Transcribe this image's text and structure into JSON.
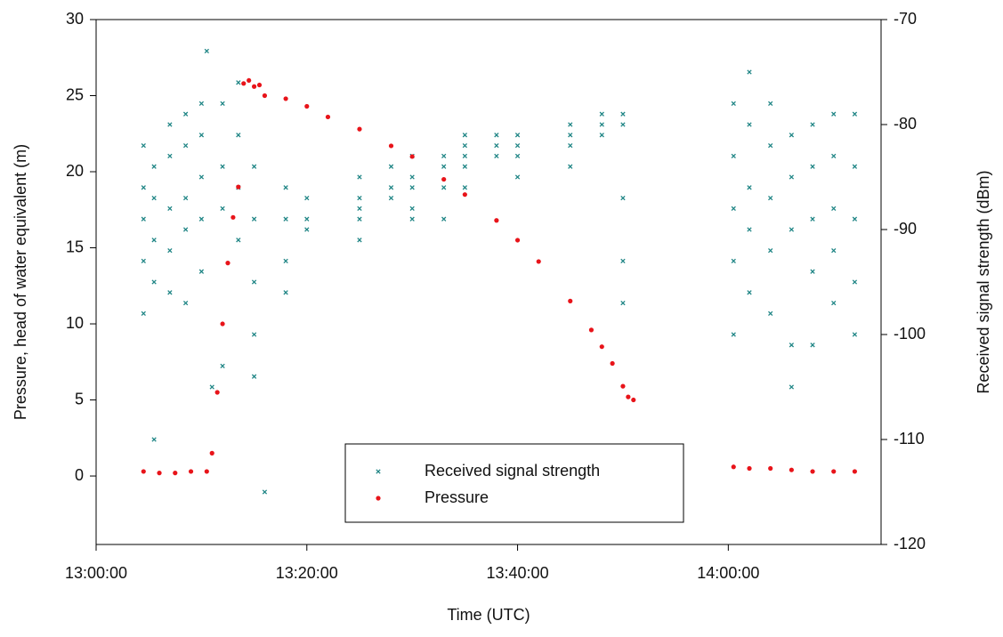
{
  "chart_data": {
    "type": "scatter",
    "xlabel": "Time (UTC)",
    "ylabel": "Pressure, head of water equivalent (m)",
    "y2label": "Received signal strength (dBm)",
    "xlim": [
      "13:00:00",
      "14:14:30"
    ],
    "xticks": [
      "13:00:00",
      "13:20:00",
      "13:40:00",
      "14:00:00"
    ],
    "ylim": [
      -4.5,
      30
    ],
    "yticks": [
      0,
      5,
      10,
      15,
      20,
      25,
      30
    ],
    "y2lim": [
      -120,
      -70
    ],
    "y2ticks": [
      -120,
      -110,
      -100,
      -90,
      -80,
      -70
    ],
    "legend": "bottom-center",
    "series": [
      {
        "name": "Received signal strength",
        "color": "#1f8585",
        "axis": "y2",
        "marker": "x",
        "x": [
          "13:04:30",
          "13:04:30",
          "13:04:30",
          "13:04:30",
          "13:04:30",
          "13:05:30",
          "13:05:30",
          "13:05:30",
          "13:05:30",
          "13:05:30",
          "13:07:00",
          "13:07:00",
          "13:07:00",
          "13:07:00",
          "13:07:00",
          "13:08:30",
          "13:08:30",
          "13:08:30",
          "13:08:30",
          "13:08:30",
          "13:10:00",
          "13:10:00",
          "13:10:00",
          "13:10:00",
          "13:10:00",
          "13:10:30",
          "13:11:00",
          "13:12:00",
          "13:12:00",
          "13:12:00",
          "13:12:00",
          "13:13:30",
          "13:13:30",
          "13:13:30",
          "13:13:30",
          "13:15:00",
          "13:15:00",
          "13:15:00",
          "13:15:00",
          "13:15:00",
          "13:16:00",
          "13:18:00",
          "13:18:00",
          "13:18:00",
          "13:18:00",
          "13:20:00",
          "13:20:00",
          "13:20:00",
          "13:25:00",
          "13:25:00",
          "13:25:00",
          "13:25:00",
          "13:25:00",
          "13:28:00",
          "13:28:00",
          "13:28:00",
          "13:30:00",
          "13:30:00",
          "13:30:00",
          "13:30:00",
          "13:30:00",
          "13:33:00",
          "13:33:00",
          "13:33:00",
          "13:33:00",
          "13:35:00",
          "13:35:00",
          "13:35:00",
          "13:35:00",
          "13:35:00",
          "13:38:00",
          "13:38:00",
          "13:38:00",
          "13:40:00",
          "13:40:00",
          "13:40:00",
          "13:40:00",
          "13:45:00",
          "13:45:00",
          "13:45:00",
          "13:45:00",
          "13:48:00",
          "13:48:00",
          "13:48:00",
          "13:50:00",
          "13:50:00",
          "13:50:00",
          "13:50:00",
          "13:50:00",
          "14:00:30",
          "14:00:30",
          "14:00:30",
          "14:00:30",
          "14:00:30",
          "14:02:00",
          "14:02:00",
          "14:02:00",
          "14:02:00",
          "14:02:00",
          "14:04:00",
          "14:04:00",
          "14:04:00",
          "14:04:00",
          "14:04:00",
          "14:06:00",
          "14:06:00",
          "14:06:00",
          "14:06:00",
          "14:06:00",
          "14:08:00",
          "14:08:00",
          "14:08:00",
          "14:08:00",
          "14:08:00",
          "14:10:00",
          "14:10:00",
          "14:10:00",
          "14:10:00",
          "14:10:00",
          "14:12:00",
          "14:12:00",
          "14:12:00",
          "14:12:00",
          "14:12:00"
        ],
        "values": [
          -82,
          -86,
          -89,
          -93,
          -98,
          -84,
          -87,
          -91,
          -95,
          -110,
          -80,
          -83,
          -88,
          -92,
          -96,
          -79,
          -82,
          -87,
          -90,
          -97,
          -78,
          -81,
          -85,
          -89,
          -94,
          -73,
          -105,
          -78,
          -84,
          -88,
          -103,
          -76,
          -81,
          -86,
          -91,
          -84,
          -89,
          -95,
          -100,
          -104,
          -115,
          -86,
          -89,
          -93,
          -96,
          -87,
          -89,
          -90,
          -85,
          -87,
          -88,
          -89,
          -91,
          -84,
          -86,
          -87,
          -83,
          -85,
          -86,
          -88,
          -89,
          -83,
          -84,
          -86,
          -89,
          -81,
          -82,
          -83,
          -84,
          -86,
          -81,
          -82,
          -83,
          -81,
          -82,
          -83,
          -85,
          -80,
          -81,
          -82,
          -84,
          -79,
          -80,
          -81,
          -79,
          -80,
          -87,
          -93,
          -97,
          -78,
          -83,
          -88,
          -93,
          -100,
          -75,
          -80,
          -86,
          -90,
          -96,
          -78,
          -82,
          -87,
          -92,
          -98,
          -81,
          -85,
          -90,
          -101,
          -105,
          -80,
          -84,
          -89,
          -94,
          -101,
          -79,
          -83,
          -88,
          -92,
          -97,
          -79,
          -84,
          -89,
          -95,
          -100
        ]
      },
      {
        "name": "Pressure",
        "color": "#e8141a",
        "marker": "circle",
        "x": [
          "13:04:30",
          "13:06:00",
          "13:07:30",
          "13:09:00",
          "13:10:30",
          "13:11:00",
          "13:11:30",
          "13:12:00",
          "13:12:30",
          "13:13:00",
          "13:13:30",
          "13:14:00",
          "13:14:30",
          "13:15:00",
          "13:15:30",
          "13:16:00",
          "13:18:00",
          "13:20:00",
          "13:22:00",
          "13:25:00",
          "13:28:00",
          "13:30:00",
          "13:33:00",
          "13:35:00",
          "13:38:00",
          "13:40:00",
          "13:42:00",
          "13:45:00",
          "13:47:00",
          "13:48:00",
          "13:49:00",
          "13:50:00",
          "13:50:30",
          "13:51:00",
          "14:00:30",
          "14:02:00",
          "14:04:00",
          "14:06:00",
          "14:08:00",
          "14:10:00",
          "14:12:00"
        ],
        "values": [
          0.3,
          0.2,
          0.2,
          0.3,
          0.3,
          1.5,
          5.5,
          10,
          14,
          17,
          19,
          25.8,
          26,
          25.6,
          25.7,
          25,
          24.8,
          24.3,
          23.6,
          22.8,
          21.7,
          21,
          19.5,
          18.5,
          16.8,
          15.5,
          14.1,
          11.5,
          9.6,
          8.5,
          7.4,
          5.9,
          5.2,
          5.0,
          0.6,
          0.5,
          0.5,
          0.4,
          0.3,
          0.3,
          0.3
        ]
      }
    ]
  }
}
